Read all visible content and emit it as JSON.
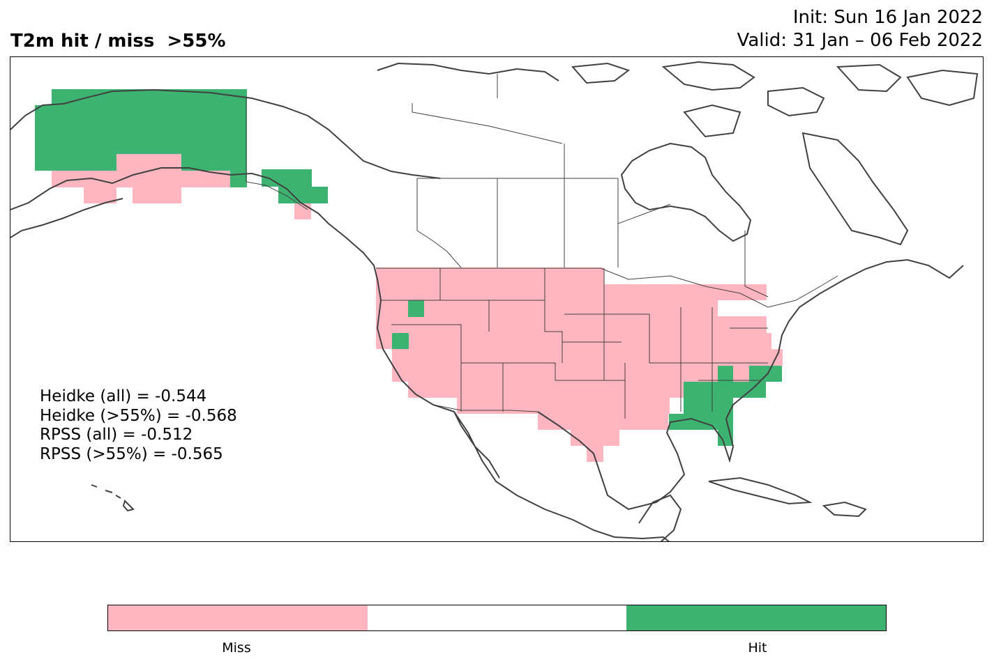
{
  "header": {
    "title": "T2m hit / miss  >55%",
    "init": "Init: Sun 16 Jan 2022",
    "valid": "Valid: 31 Jan – 06 Feb 2022"
  },
  "scores": [
    "Heidke (all) = -0.544",
    "Heidke (>55%) = -0.568",
    "RPSS (all) = -0.512",
    "RPSS (>55%) = -0.565"
  ],
  "legend": {
    "categories": [
      "Miss",
      "",
      "Hit"
    ],
    "labels": {
      "miss": "Miss",
      "hit": "Hit"
    },
    "colors": {
      "miss": "#ffb6c1",
      "neutral": "#ffffff",
      "hit": "#3cb371"
    }
  },
  "map": {
    "land_outline_color": "#404040",
    "border_color": "#404040"
  }
}
